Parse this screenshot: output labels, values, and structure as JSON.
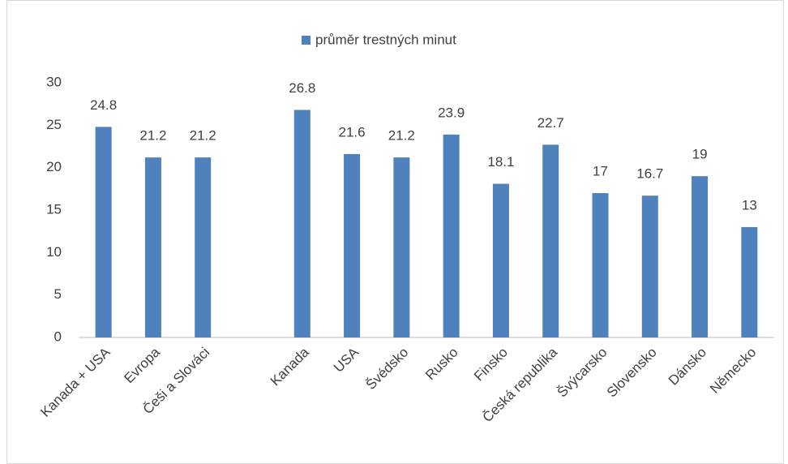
{
  "chart_data": {
    "type": "bar",
    "categories": [
      "Kanada + USA",
      "Evropa",
      "Češi a Slováci",
      null,
      "Kanada",
      "USA",
      "Švédsko",
      "Rusko",
      "Finsko",
      "Česká republika",
      "Švýcarsko",
      "Slovensko",
      "Dánsko",
      "Německo"
    ],
    "series": [
      {
        "name": "průměr trestných minut",
        "color": "#4f81bd",
        "values": [
          24.8,
          21.2,
          21.2,
          null,
          26.8,
          21.6,
          21.2,
          23.9,
          18.1,
          22.7,
          17,
          16.7,
          19,
          13
        ]
      }
    ],
    "ylim": [
      0,
      30
    ],
    "yticks": [
      0,
      5,
      10,
      15,
      20,
      25,
      30
    ],
    "grid": false,
    "legend": "top"
  }
}
